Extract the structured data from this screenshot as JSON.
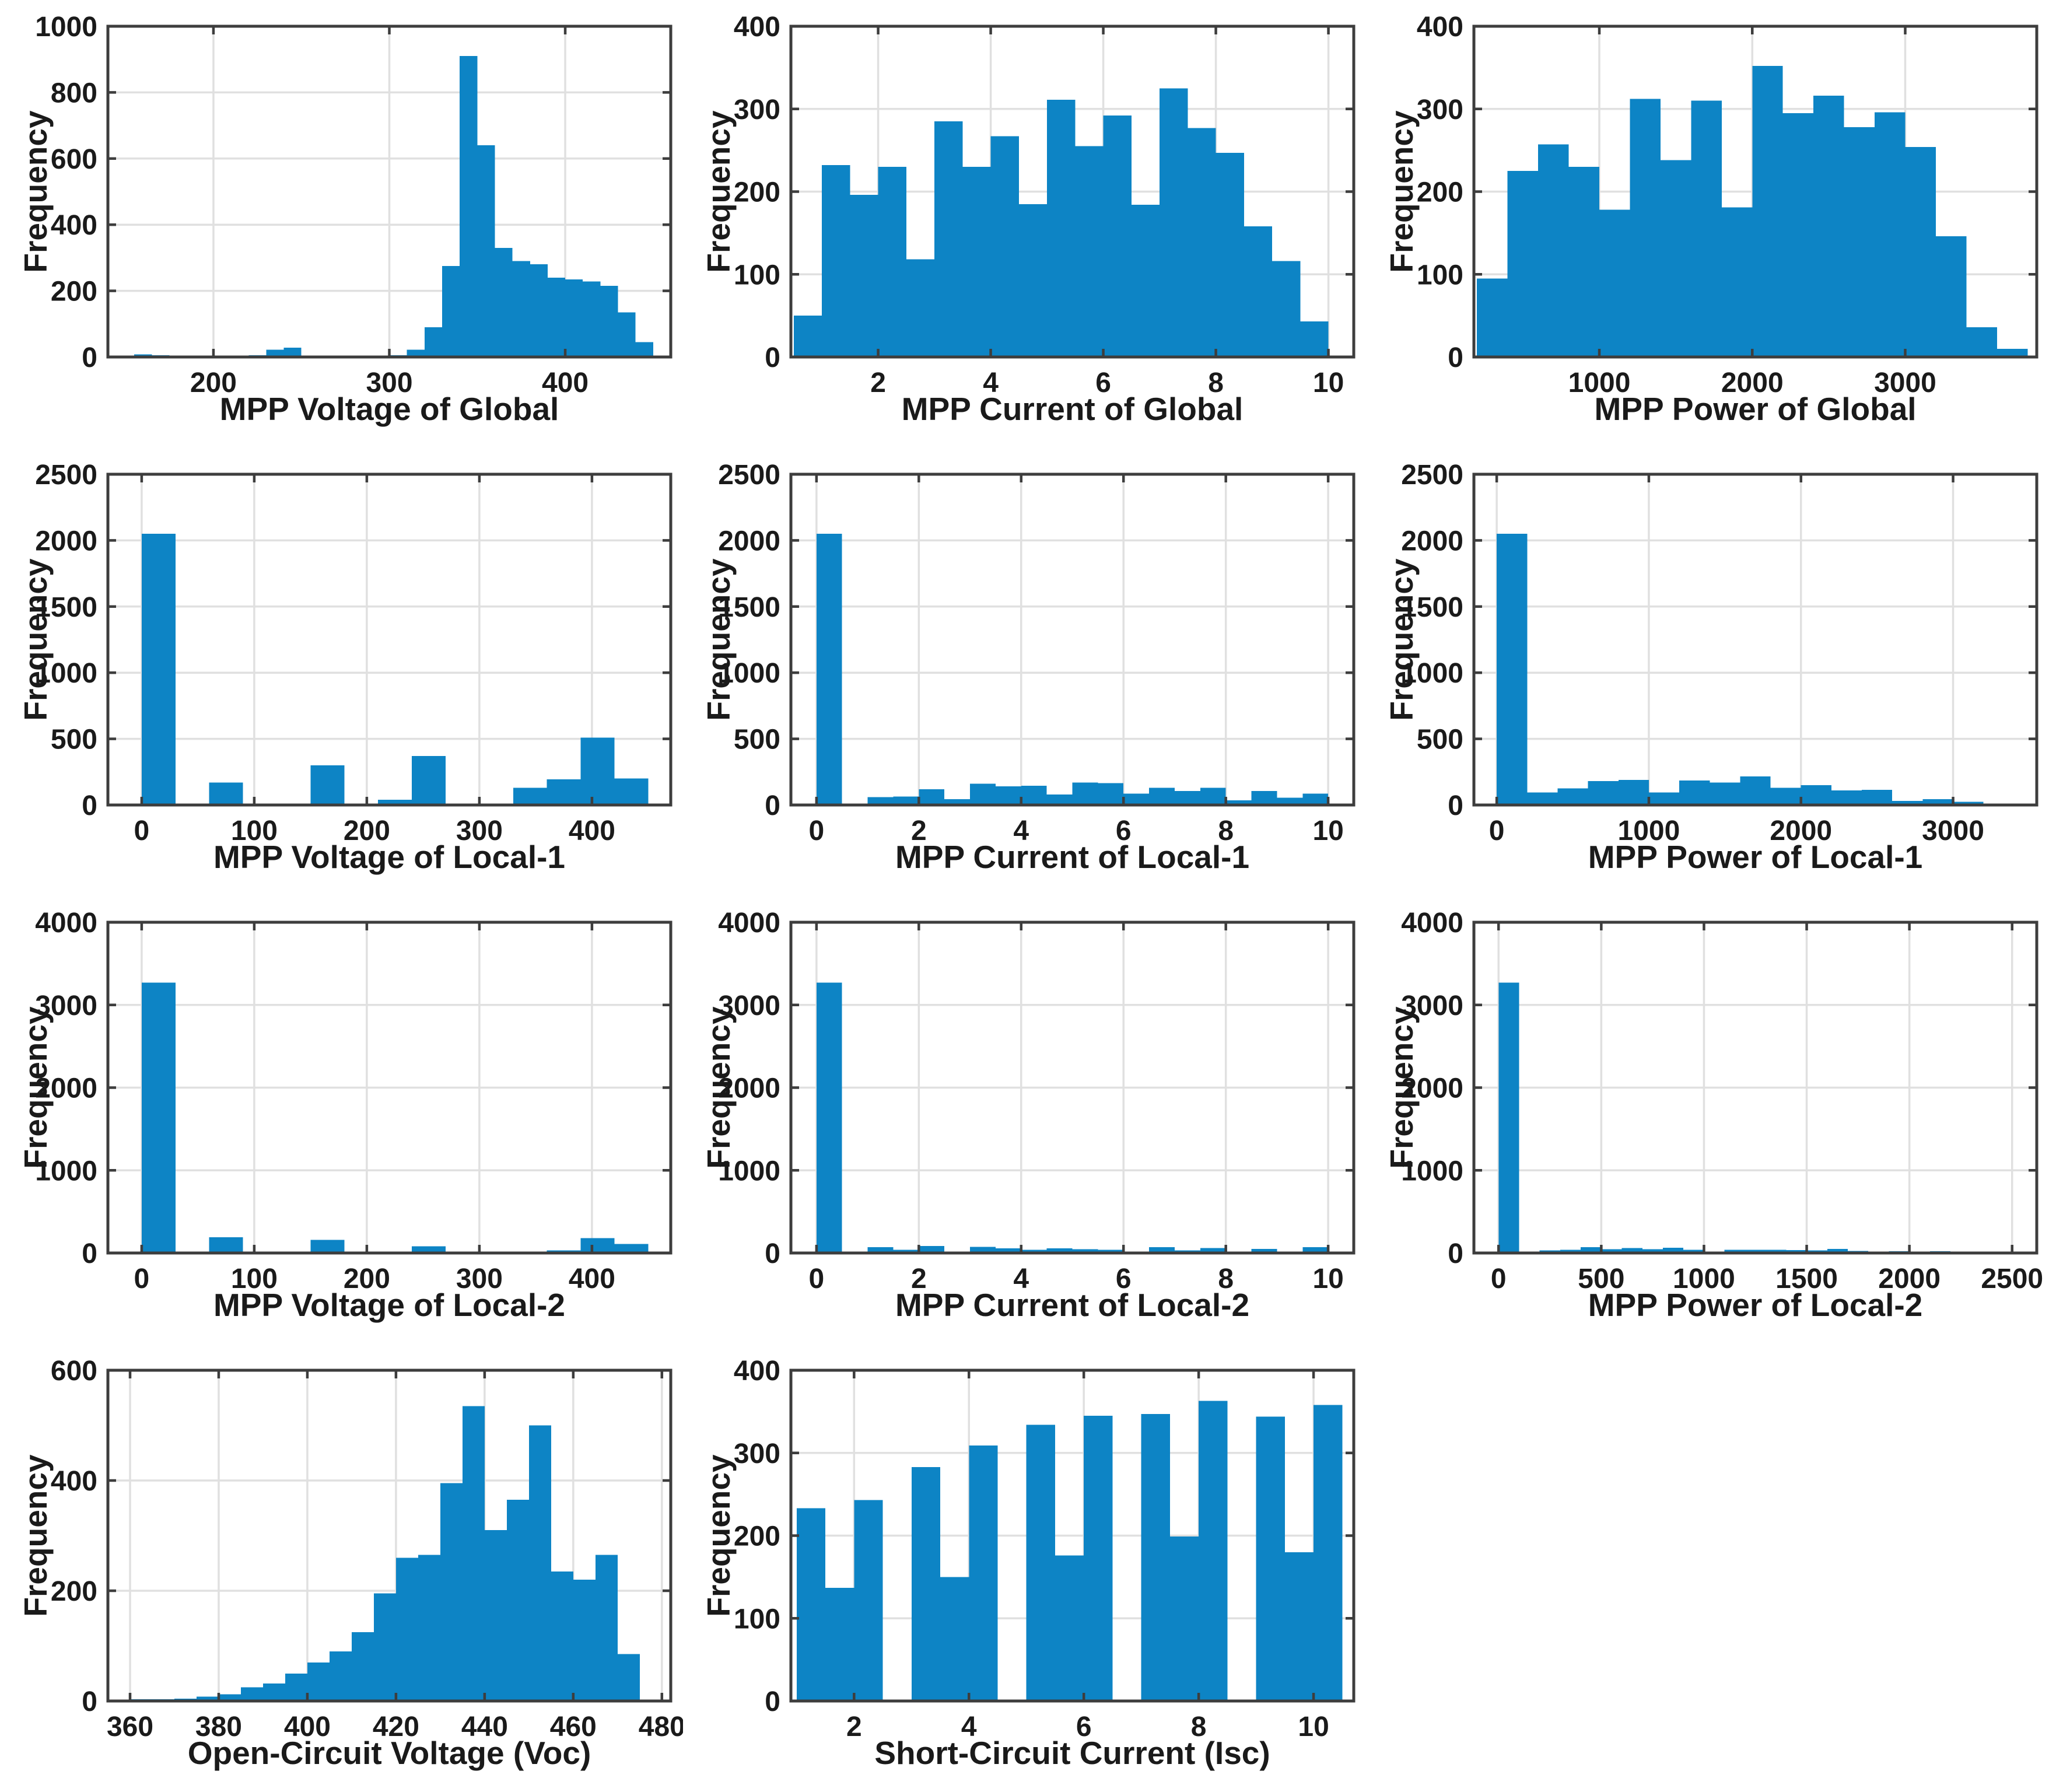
{
  "figure": {
    "ylabel_text": "Frequency",
    "bar_color": "#0d84c5",
    "grid_color": "#e0e0e0",
    "axis_color": "#3d3d3d",
    "text_color": "#1a1a1a",
    "background_color": "#ffffff"
  },
  "chart_data": [
    {
      "type": "bar",
      "title": "MPP Voltage of Global",
      "ylabel": "Frequency",
      "xlim": [
        140,
        460
      ],
      "ylim": [
        0,
        1000
      ],
      "xticks": [
        200,
        300,
        400
      ],
      "yticks": [
        0,
        200,
        400,
        600,
        800,
        1000
      ],
      "grid": true,
      "bins": [
        [
          155,
          165,
          8
        ],
        [
          165,
          175,
          5
        ],
        [
          220,
          230,
          5
        ],
        [
          230,
          240,
          22
        ],
        [
          240,
          250,
          28
        ],
        [
          300,
          310,
          5
        ],
        [
          310,
          320,
          22
        ],
        [
          320,
          330,
          90
        ],
        [
          330,
          340,
          275
        ],
        [
          340,
          350,
          910
        ],
        [
          350,
          360,
          640
        ],
        [
          360,
          370,
          330
        ],
        [
          370,
          380,
          290
        ],
        [
          380,
          390,
          280
        ],
        [
          390,
          400,
          240
        ],
        [
          400,
          410,
          235
        ],
        [
          410,
          420,
          228
        ],
        [
          420,
          430,
          215
        ],
        [
          430,
          440,
          135
        ],
        [
          440,
          450,
          45
        ]
      ]
    },
    {
      "type": "bar",
      "title": "MPP Current of Global",
      "ylabel": "Frequency",
      "xlim": [
        0.45,
        10.45
      ],
      "ylim": [
        0,
        400
      ],
      "xticks": [
        2,
        4,
        6,
        8,
        10
      ],
      "yticks": [
        0,
        100,
        200,
        300,
        400
      ],
      "grid": true,
      "bins": [
        [
          0.5,
          1,
          50
        ],
        [
          1,
          1.5,
          232
        ],
        [
          1.5,
          2,
          196
        ],
        [
          2,
          2.5,
          230
        ],
        [
          2.5,
          3,
          118
        ],
        [
          3,
          3.5,
          285
        ],
        [
          3.5,
          4,
          230
        ],
        [
          4,
          4.5,
          267
        ],
        [
          4.5,
          5,
          185
        ],
        [
          5,
          5.5,
          311
        ],
        [
          5.5,
          6,
          255
        ],
        [
          6,
          6.5,
          292
        ],
        [
          6.5,
          7,
          184
        ],
        [
          7,
          7.5,
          325
        ],
        [
          7.5,
          8,
          277
        ],
        [
          8,
          8.5,
          247
        ],
        [
          8.5,
          9,
          158
        ],
        [
          9,
          9.5,
          116
        ],
        [
          9.5,
          10,
          43
        ]
      ]
    },
    {
      "type": "bar",
      "title": "MPP Power of Global",
      "ylabel": "Frequency",
      "xlim": [
        180,
        3860
      ],
      "ylim": [
        0,
        400
      ],
      "xticks": [
        1000,
        2000,
        3000
      ],
      "yticks": [
        0,
        100,
        200,
        300,
        400
      ],
      "grid": true,
      "bins": [
        [
          200,
          400,
          95
        ],
        [
          400,
          600,
          225
        ],
        [
          600,
          800,
          257
        ],
        [
          800,
          1000,
          230
        ],
        [
          1000,
          1200,
          178
        ],
        [
          1200,
          1400,
          312
        ],
        [
          1400,
          1600,
          238
        ],
        [
          1600,
          1800,
          310
        ],
        [
          1800,
          2000,
          181
        ],
        [
          2000,
          2200,
          352
        ],
        [
          2200,
          2400,
          295
        ],
        [
          2400,
          2600,
          316
        ],
        [
          2600,
          2800,
          278
        ],
        [
          2800,
          3000,
          296
        ],
        [
          3000,
          3200,
          254
        ],
        [
          3200,
          3400,
          146
        ],
        [
          3400,
          3600,
          36
        ],
        [
          3600,
          3800,
          10
        ]
      ]
    },
    {
      "type": "bar",
      "title": "MPP Voltage of Local-1",
      "ylabel": "Frequency",
      "xlim": [
        -30,
        470
      ],
      "ylim": [
        0,
        2500
      ],
      "xticks": [
        0,
        100,
        200,
        300,
        400
      ],
      "yticks": [
        0,
        500,
        1000,
        1500,
        2000,
        2500
      ],
      "grid": true,
      "bins": [
        [
          0,
          30,
          2050
        ],
        [
          60,
          90,
          170
        ],
        [
          150,
          180,
          300
        ],
        [
          210,
          240,
          40
        ],
        [
          240,
          270,
          370
        ],
        [
          330,
          360,
          130
        ],
        [
          360,
          390,
          195
        ],
        [
          390,
          420,
          510
        ],
        [
          420,
          450,
          200
        ]
      ]
    },
    {
      "type": "bar",
      "title": "MPP Current of Local-1",
      "ylabel": "Frequency",
      "xlim": [
        -0.5,
        10.5
      ],
      "ylim": [
        0,
        2500
      ],
      "xticks": [
        0,
        2,
        4,
        6,
        8,
        10
      ],
      "yticks": [
        0,
        500,
        1000,
        1500,
        2000,
        2500
      ],
      "grid": true,
      "bins": [
        [
          0,
          0.5,
          2050
        ],
        [
          1,
          1.5,
          60
        ],
        [
          1.5,
          2,
          65
        ],
        [
          2,
          2.5,
          120
        ],
        [
          2.5,
          3,
          45
        ],
        [
          3,
          3.5,
          160
        ],
        [
          3.5,
          4,
          140
        ],
        [
          4,
          4.5,
          145
        ],
        [
          4.5,
          5,
          80
        ],
        [
          5,
          5.5,
          170
        ],
        [
          5.5,
          6,
          165
        ],
        [
          6,
          6.5,
          85
        ],
        [
          6.5,
          7,
          130
        ],
        [
          7,
          7.5,
          105
        ],
        [
          7.5,
          8,
          130
        ],
        [
          8,
          8.5,
          35
        ],
        [
          8.5,
          9,
          105
        ],
        [
          9,
          9.5,
          55
        ],
        [
          9.5,
          10,
          85
        ]
      ]
    },
    {
      "type": "bar",
      "title": "MPP Power of Local-1",
      "ylabel": "Frequency",
      "xlim": [
        -150,
        3550
      ],
      "ylim": [
        0,
        2500
      ],
      "xticks": [
        0,
        1000,
        2000,
        3000
      ],
      "yticks": [
        0,
        500,
        1000,
        1500,
        2000,
        2500
      ],
      "grid": true,
      "bins": [
        [
          0,
          200,
          2050
        ],
        [
          200,
          400,
          95
        ],
        [
          400,
          600,
          125
        ],
        [
          600,
          800,
          180
        ],
        [
          800,
          1000,
          190
        ],
        [
          1000,
          1200,
          95
        ],
        [
          1200,
          1400,
          185
        ],
        [
          1400,
          1600,
          170
        ],
        [
          1600,
          1800,
          215
        ],
        [
          1800,
          2000,
          130
        ],
        [
          2000,
          2200,
          150
        ],
        [
          2200,
          2400,
          110
        ],
        [
          2400,
          2600,
          115
        ],
        [
          2600,
          2800,
          30
        ],
        [
          2800,
          3000,
          45
        ],
        [
          3000,
          3200,
          25
        ],
        [
          3200,
          3400,
          10
        ]
      ]
    },
    {
      "type": "bar",
      "title": "MPP Voltage of Local-2",
      "ylabel": "Frequency",
      "xlim": [
        -30,
        470
      ],
      "ylim": [
        0,
        4000
      ],
      "xticks": [
        0,
        100,
        200,
        300,
        400
      ],
      "yticks": [
        0,
        1000,
        2000,
        3000,
        4000
      ],
      "grid": true,
      "bins": [
        [
          0,
          30,
          3270
        ],
        [
          60,
          90,
          190
        ],
        [
          150,
          180,
          160
        ],
        [
          240,
          270,
          80
        ],
        [
          360,
          390,
          30
        ],
        [
          390,
          420,
          180
        ],
        [
          420,
          450,
          110
        ]
      ]
    },
    {
      "type": "bar",
      "title": "MPP Current of Local-2",
      "ylabel": "Frequency",
      "xlim": [
        -0.5,
        10.5
      ],
      "ylim": [
        0,
        4000
      ],
      "xticks": [
        0,
        2,
        4,
        6,
        8,
        10
      ],
      "yticks": [
        0,
        1000,
        2000,
        3000,
        4000
      ],
      "grid": true,
      "bins": [
        [
          0,
          0.5,
          3270
        ],
        [
          1,
          1.5,
          70
        ],
        [
          1.5,
          2,
          40
        ],
        [
          2,
          2.5,
          85
        ],
        [
          2.5,
          3,
          15
        ],
        [
          3,
          3.5,
          75
        ],
        [
          3.5,
          4,
          55
        ],
        [
          4,
          4.5,
          40
        ],
        [
          4.5,
          5,
          55
        ],
        [
          5,
          5.5,
          45
        ],
        [
          5.5,
          6,
          40
        ],
        [
          6.5,
          7,
          70
        ],
        [
          7,
          7.5,
          30
        ],
        [
          7.5,
          8,
          60
        ],
        [
          8.5,
          9,
          50
        ],
        [
          9.5,
          10,
          70
        ]
      ]
    },
    {
      "type": "bar",
      "title": "MPP Power of Local-2",
      "ylabel": "Frequency",
      "xlim": [
        -120,
        2620
      ],
      "ylim": [
        0,
        4000
      ],
      "xticks": [
        0,
        500,
        1000,
        1500,
        2000,
        2500
      ],
      "yticks": [
        0,
        1000,
        2000,
        3000,
        4000
      ],
      "grid": true,
      "bins": [
        [
          0,
          100,
          3270
        ],
        [
          200,
          300,
          30
        ],
        [
          300,
          400,
          40
        ],
        [
          400,
          500,
          70
        ],
        [
          500,
          600,
          45
        ],
        [
          600,
          700,
          60
        ],
        [
          700,
          800,
          45
        ],
        [
          800,
          900,
          65
        ],
        [
          900,
          1000,
          40
        ],
        [
          1100,
          1200,
          40
        ],
        [
          1200,
          1300,
          40
        ],
        [
          1300,
          1400,
          40
        ],
        [
          1400,
          1500,
          35
        ],
        [
          1500,
          1600,
          30
        ],
        [
          1600,
          1700,
          50
        ],
        [
          1700,
          1800,
          25
        ],
        [
          1900,
          2000,
          20
        ],
        [
          2100,
          2200,
          20
        ],
        [
          2300,
          2400,
          12
        ],
        [
          2400,
          2500,
          12
        ]
      ]
    },
    {
      "type": "bar",
      "title": "Open-Circuit Voltage (Voc)",
      "ylabel": "Frequency",
      "xlim": [
        355,
        482
      ],
      "ylim": [
        0,
        600
      ],
      "xticks": [
        360,
        380,
        400,
        420,
        440,
        460,
        480
      ],
      "yticks": [
        0,
        200,
        400,
        600
      ],
      "grid": true,
      "bins": [
        [
          360,
          365,
          3
        ],
        [
          365,
          370,
          3
        ],
        [
          370,
          375,
          4
        ],
        [
          375,
          380,
          8
        ],
        [
          380,
          385,
          12
        ],
        [
          385,
          390,
          25
        ],
        [
          390,
          395,
          32
        ],
        [
          395,
          400,
          50
        ],
        [
          400,
          405,
          70
        ],
        [
          405,
          410,
          90
        ],
        [
          410,
          415,
          125
        ],
        [
          415,
          420,
          195
        ],
        [
          420,
          425,
          260
        ],
        [
          425,
          430,
          265
        ],
        [
          430,
          435,
          395
        ],
        [
          435,
          440,
          535
        ],
        [
          440,
          445,
          310
        ],
        [
          445,
          450,
          365
        ],
        [
          450,
          455,
          500
        ],
        [
          455,
          460,
          235
        ],
        [
          460,
          465,
          220
        ],
        [
          465,
          470,
          265
        ],
        [
          470,
          475,
          85
        ]
      ]
    },
    {
      "type": "bar",
      "title": "Short-Circuit Current (Isc)",
      "ylabel": "Frequency",
      "xlim": [
        0.9,
        10.7
      ],
      "ylim": [
        0,
        400
      ],
      "xticks": [
        2,
        4,
        6,
        8,
        10
      ],
      "yticks": [
        0,
        100,
        200,
        300,
        400
      ],
      "grid": true,
      "bins": [
        [
          1,
          1.5,
          233
        ],
        [
          1.5,
          2,
          137
        ],
        [
          2,
          2.5,
          243
        ],
        [
          3,
          3.5,
          283
        ],
        [
          3.5,
          4,
          150
        ],
        [
          4,
          4.5,
          309
        ],
        [
          5,
          5.5,
          334
        ],
        [
          5.5,
          6,
          176
        ],
        [
          6,
          6.5,
          345
        ],
        [
          7,
          7.5,
          347
        ],
        [
          7.5,
          8,
          199
        ],
        [
          8,
          8.5,
          363
        ],
        [
          9,
          9.5,
          344
        ],
        [
          9.5,
          10,
          180
        ],
        [
          10,
          10.5,
          358
        ]
      ]
    }
  ]
}
